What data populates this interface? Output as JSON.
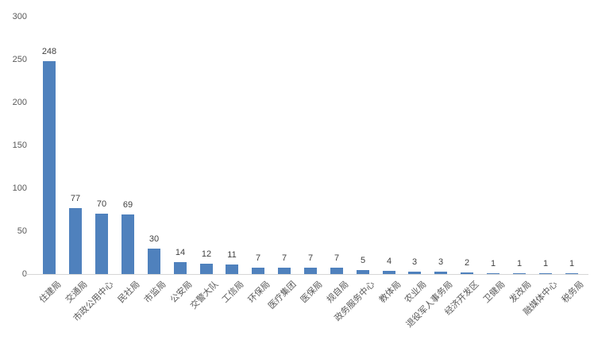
{
  "chart_data": {
    "type": "bar",
    "title": "",
    "xlabel": "",
    "ylabel": "",
    "categories": [
      "住建局",
      "交通局",
      "市政公用中心",
      "民社局",
      "市监局",
      "公安局",
      "交警大队",
      "工信局",
      "环保局",
      "医疗集团",
      "医保局",
      "规自局",
      "政务服务中心",
      "教体局",
      "农业局",
      "退役军人事务局",
      "经济开发区",
      "卫健局",
      "发改局",
      "融媒体中心",
      "税务局"
    ],
    "values": [
      248,
      77,
      70,
      69,
      30,
      14,
      12,
      11,
      7,
      7,
      7,
      7,
      5,
      4,
      3,
      3,
      2,
      1,
      1,
      1,
      1
    ],
    "data_labels": [
      "248",
      "77",
      "70",
      "69",
      "30",
      "14",
      "12",
      "11",
      "7",
      "7",
      "7",
      "7",
      "5",
      "4",
      "3",
      "3",
      "2",
      "1",
      "1",
      "1",
      "1"
    ],
    "ylim": [
      0,
      300
    ],
    "yticks": [
      0,
      50,
      100,
      150,
      200,
      250,
      300
    ],
    "grid": false,
    "legend": false,
    "bar_color": "#4f81bd",
    "axis_line_color": "#d6d6d6",
    "value_label_color": "#404040",
    "tick_label_color": "#595959"
  }
}
